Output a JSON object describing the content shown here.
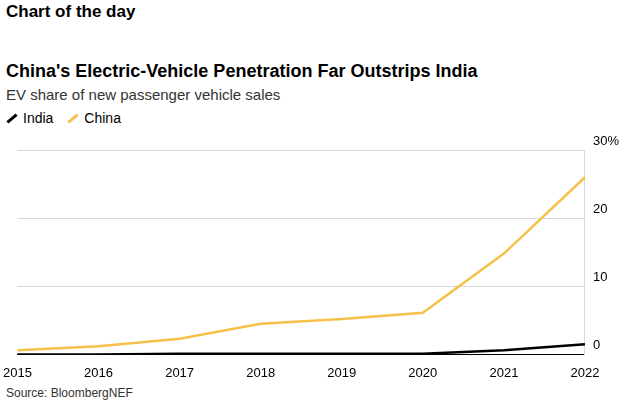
{
  "chart_data": {
    "type": "line",
    "header": "Chart of the day",
    "title": "China's Electric-Vehicle Penetration Far Outstrips India",
    "subtitle": "EV share of new passenger vehicle sales",
    "source": "Source: BloombergNEF",
    "categories": [
      "2015",
      "2016",
      "2017",
      "2018",
      "2019",
      "2020",
      "2021",
      "2022"
    ],
    "series": [
      {
        "name": "India",
        "color": "#000000",
        "values": [
          0,
          0,
          0.1,
          0.1,
          0.1,
          0.1,
          0.6,
          1.5
        ]
      },
      {
        "name": "China",
        "color": "#f5c14b",
        "values": [
          0.6,
          1.2,
          2.3,
          4.5,
          5.2,
          6.1,
          14.8,
          26
        ]
      }
    ],
    "ylim": [
      0,
      30
    ],
    "yticks": [
      0,
      10,
      20,
      {
        "value": 30,
        "label": "30%"
      }
    ],
    "grid": true,
    "legend": "top-left"
  }
}
